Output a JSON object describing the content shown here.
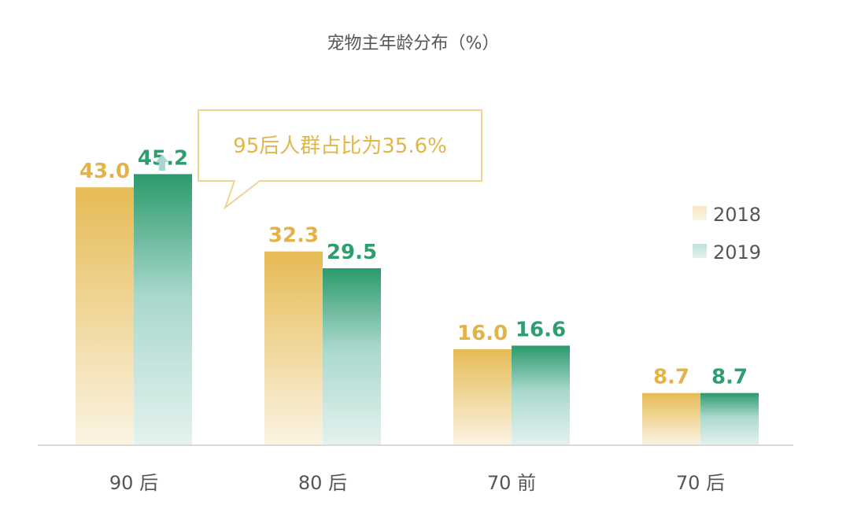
{
  "chart_data": {
    "type": "bar",
    "title": "宠物主年龄分布（%）",
    "categories": [
      "90后",
      "80后",
      "70前",
      "70后"
    ],
    "category_display": [
      "90 后",
      "80 后",
      "70 前",
      "70 后"
    ],
    "series": [
      {
        "name": "2018",
        "values": [
          43.0,
          32.3,
          16.0,
          8.7
        ],
        "labels": [
          "43.0",
          "32.3",
          "16.0",
          "8.7"
        ],
        "color": "#e8bf55"
      },
      {
        "name": "2019",
        "values": [
          45.2,
          29.5,
          16.6,
          8.7
        ],
        "labels": [
          "45.2",
          "29.5",
          "16.6",
          "8.7"
        ],
        "color": "#2e9e6e"
      }
    ],
    "ylim": [
      0,
      48
    ],
    "grid": false,
    "legend_position": "right",
    "annotation": {
      "text": "95后人群占比为35.6%",
      "category": "90后",
      "series": "2019",
      "icon": "up-arrow-icon"
    }
  }
}
